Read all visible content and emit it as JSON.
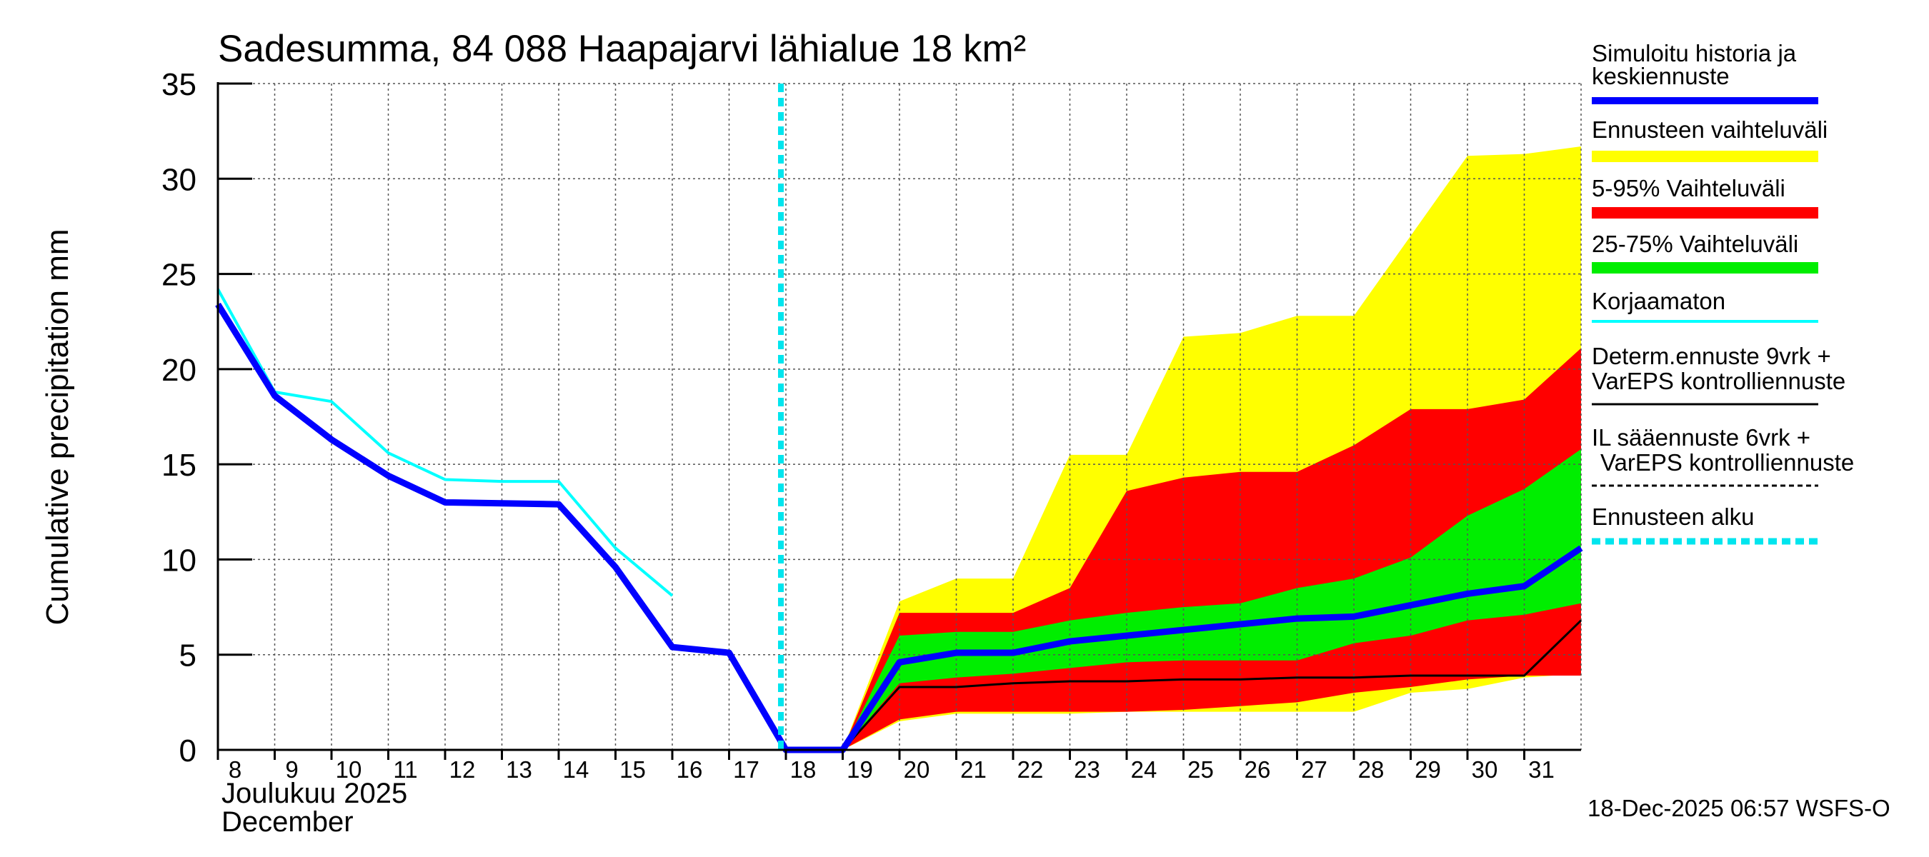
{
  "colors": {
    "history_mean": "#0000ff",
    "range_full": "#ffff00",
    "range_5_95": "#ff0000",
    "range_25_75": "#00ee00",
    "uncorrected": "#00ffff",
    "deterministic": "#000000",
    "forecast_start": "#00e5ee",
    "grid": "#555555"
  },
  "chart_data": {
    "type": "area",
    "title": "Sadesumma, 84 088 Haapajarvi lähialue 18 km²",
    "ylabel": "Cumulative precipitation   mm",
    "xlabel_line1": "Joulukuu  2025",
    "xlabel_line2": "December",
    "footer": "18-Dec-2025 06:57 WSFS-O",
    "ylim": [
      0,
      35
    ],
    "xlim": [
      8,
      32
    ],
    "yticks": [
      0,
      5,
      10,
      15,
      20,
      25,
      30,
      35
    ],
    "xticks": [
      8,
      9,
      10,
      11,
      12,
      13,
      14,
      15,
      16,
      17,
      18,
      19,
      20,
      21,
      22,
      23,
      24,
      25,
      26,
      27,
      28,
      29,
      30,
      31
    ],
    "grid": true,
    "forecast_start_day": 18,
    "legend": {
      "history_mean_line1": "Simuloitu historia ja",
      "history_mean_line2": "keskiennuste",
      "range_full": "Ennusteen vaihteluväli",
      "range_5_95": "5-95% Vaihteluväli",
      "range_25_75": "25-75% Vaihteluväli",
      "uncorrected": "Korjaamaton",
      "deterministic_line1": "Determ.ennuste 9vrk  +",
      "deterministic_line2": "VarEPS kontrolliennuste",
      "il_forecast_line1": "IL sääennuste 6vrk  +",
      "il_forecast_line2": "VarEPS kontrolliennuste",
      "forecast_start": "Ennusteen alku"
    },
    "series": [
      {
        "name": "Ennusteen vaihteluväli",
        "band": true,
        "x": [
          19,
          20,
          21,
          22,
          23,
          24,
          25,
          26,
          27,
          28,
          29,
          30,
          31,
          32
        ],
        "upper": [
          0,
          7.8,
          9.0,
          9.0,
          15.5,
          15.5,
          21.7,
          21.9,
          22.8,
          22.8,
          27.0,
          31.2,
          31.3,
          31.7
        ],
        "lower": [
          0,
          1.5,
          1.9,
          1.9,
          1.9,
          2.0,
          2.0,
          2.0,
          2.0,
          2.0,
          3.0,
          3.2,
          3.8,
          4.0
        ]
      },
      {
        "name": "5-95% Vaihteluväli",
        "band": true,
        "x": [
          19,
          20,
          21,
          22,
          23,
          24,
          25,
          26,
          27,
          28,
          29,
          30,
          31,
          32
        ],
        "upper": [
          0,
          7.2,
          7.2,
          7.2,
          8.5,
          13.6,
          14.3,
          14.6,
          14.6,
          16.0,
          17.9,
          17.9,
          18.4,
          21.1
        ],
        "lower": [
          0,
          1.6,
          2.0,
          2.0,
          2.0,
          2.0,
          2.1,
          2.3,
          2.5,
          3.0,
          3.3,
          3.7,
          3.9,
          3.9
        ]
      },
      {
        "name": "25-75% Vaihteluväli",
        "band": true,
        "x": [
          19,
          20,
          21,
          22,
          23,
          24,
          25,
          26,
          27,
          28,
          29,
          30,
          31,
          32
        ],
        "upper": [
          0,
          6.0,
          6.2,
          6.2,
          6.8,
          7.2,
          7.5,
          7.7,
          8.5,
          9.0,
          10.1,
          12.3,
          13.7,
          15.8
        ],
        "lower": [
          0,
          3.5,
          3.8,
          4.0,
          4.3,
          4.6,
          4.7,
          4.7,
          4.7,
          5.6,
          6.0,
          6.8,
          7.1,
          7.7
        ]
      },
      {
        "name": "Korjaamaton",
        "x": [
          8,
          9,
          10,
          11,
          12,
          13,
          14,
          15,
          16
        ],
        "values": [
          24.2,
          18.8,
          18.3,
          15.6,
          14.2,
          14.1,
          14.1,
          10.6,
          8.1
        ]
      },
      {
        "name": "Determ.ennuste 9vrk + VarEPS kontrolliennuste",
        "x": [
          19,
          20,
          21,
          22,
          23,
          24,
          25,
          26,
          27,
          28,
          29,
          30,
          31,
          32
        ],
        "values": [
          0,
          3.3,
          3.3,
          3.5,
          3.6,
          3.6,
          3.7,
          3.7,
          3.8,
          3.8,
          3.9,
          3.9,
          3.9,
          6.8
        ]
      },
      {
        "name": "Simuloitu historia ja keskiennuste",
        "x": [
          8,
          9,
          10,
          11,
          12,
          13,
          14,
          15,
          16,
          17,
          18,
          19,
          20,
          21,
          22,
          23,
          24,
          25,
          26,
          27,
          28,
          29,
          30,
          31,
          32
        ],
        "values": [
          23.4,
          18.6,
          16.3,
          14.4,
          13.0,
          12.95,
          12.9,
          9.6,
          5.4,
          5.1,
          0,
          0,
          4.6,
          5.1,
          5.1,
          5.7,
          6.0,
          6.3,
          6.6,
          6.9,
          7.0,
          7.6,
          8.2,
          8.6,
          10.6
        ]
      }
    ]
  }
}
